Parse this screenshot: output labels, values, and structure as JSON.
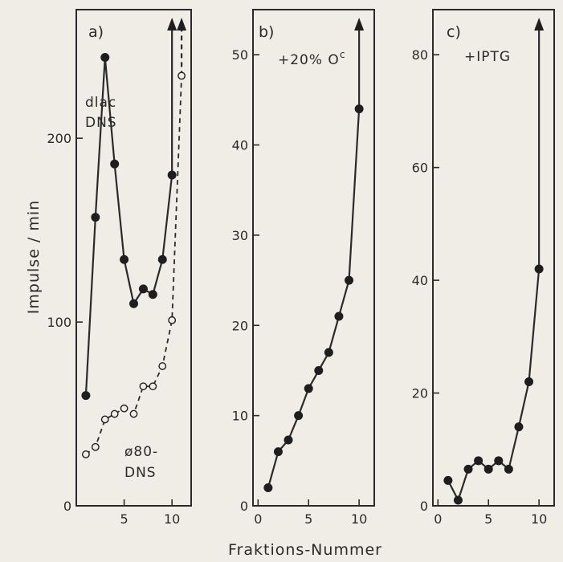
{
  "figure": {
    "ylabel": "Impulse / min",
    "xlabel": "Fraktions-Nummer"
  },
  "chart_data": [
    {
      "type": "line",
      "panel_label": "a)",
      "xlim": [
        0,
        12
      ],
      "ylim": [
        0,
        270
      ],
      "xticks": [
        5,
        10
      ],
      "yticks": [
        0,
        100,
        200
      ],
      "annotations": [
        "dlac",
        "DNS",
        "ø80-",
        "DNS"
      ],
      "series": [
        {
          "name": "dlac DNS",
          "style": "solid-filled",
          "x": [
            1,
            2,
            3,
            4,
            5,
            6,
            7,
            8,
            9,
            10
          ],
          "y": [
            60,
            157,
            244,
            186,
            134,
            110,
            118,
            115,
            134,
            180
          ],
          "arrow_x": 10
        },
        {
          "name": "ø80-DNS",
          "style": "dashed-open",
          "x": [
            1,
            2,
            3,
            4,
            5,
            6,
            7,
            8,
            9,
            10,
            11
          ],
          "y": [
            28,
            32,
            47,
            50,
            53,
            50,
            65,
            65,
            76,
            101,
            234
          ],
          "arrow_x": 11
        }
      ]
    },
    {
      "type": "line",
      "panel_label": "b)",
      "annotation": "+20% O",
      "annotation_sup": "c",
      "xlim": [
        -0.5,
        11.5
      ],
      "ylim": [
        0,
        55
      ],
      "xticks": [
        0,
        5,
        10
      ],
      "yticks": [
        0,
        10,
        20,
        30,
        40,
        50
      ],
      "series": [
        {
          "style": "solid-filled",
          "x": [
            1,
            2,
            3,
            4,
            5,
            6,
            7,
            8,
            9,
            10
          ],
          "y": [
            2,
            6,
            7.3,
            10,
            13,
            15,
            17,
            21,
            25,
            44
          ],
          "arrow_x": 10
        }
      ]
    },
    {
      "type": "line",
      "panel_label": "c)",
      "annotation": "+IPTG",
      "xlim": [
        -0.5,
        11.5
      ],
      "ylim": [
        0,
        88
      ],
      "xticks": [
        0,
        5,
        10
      ],
      "yticks": [
        0,
        20,
        40,
        60,
        80
      ],
      "series": [
        {
          "style": "solid-filled",
          "x": [
            1,
            2,
            3,
            4,
            5,
            6,
            7,
            8,
            9,
            10
          ],
          "y": [
            4.5,
            1,
            6.5,
            8,
            6.5,
            8,
            6.5,
            14,
            22,
            42
          ],
          "arrow_x": 10
        }
      ]
    }
  ]
}
